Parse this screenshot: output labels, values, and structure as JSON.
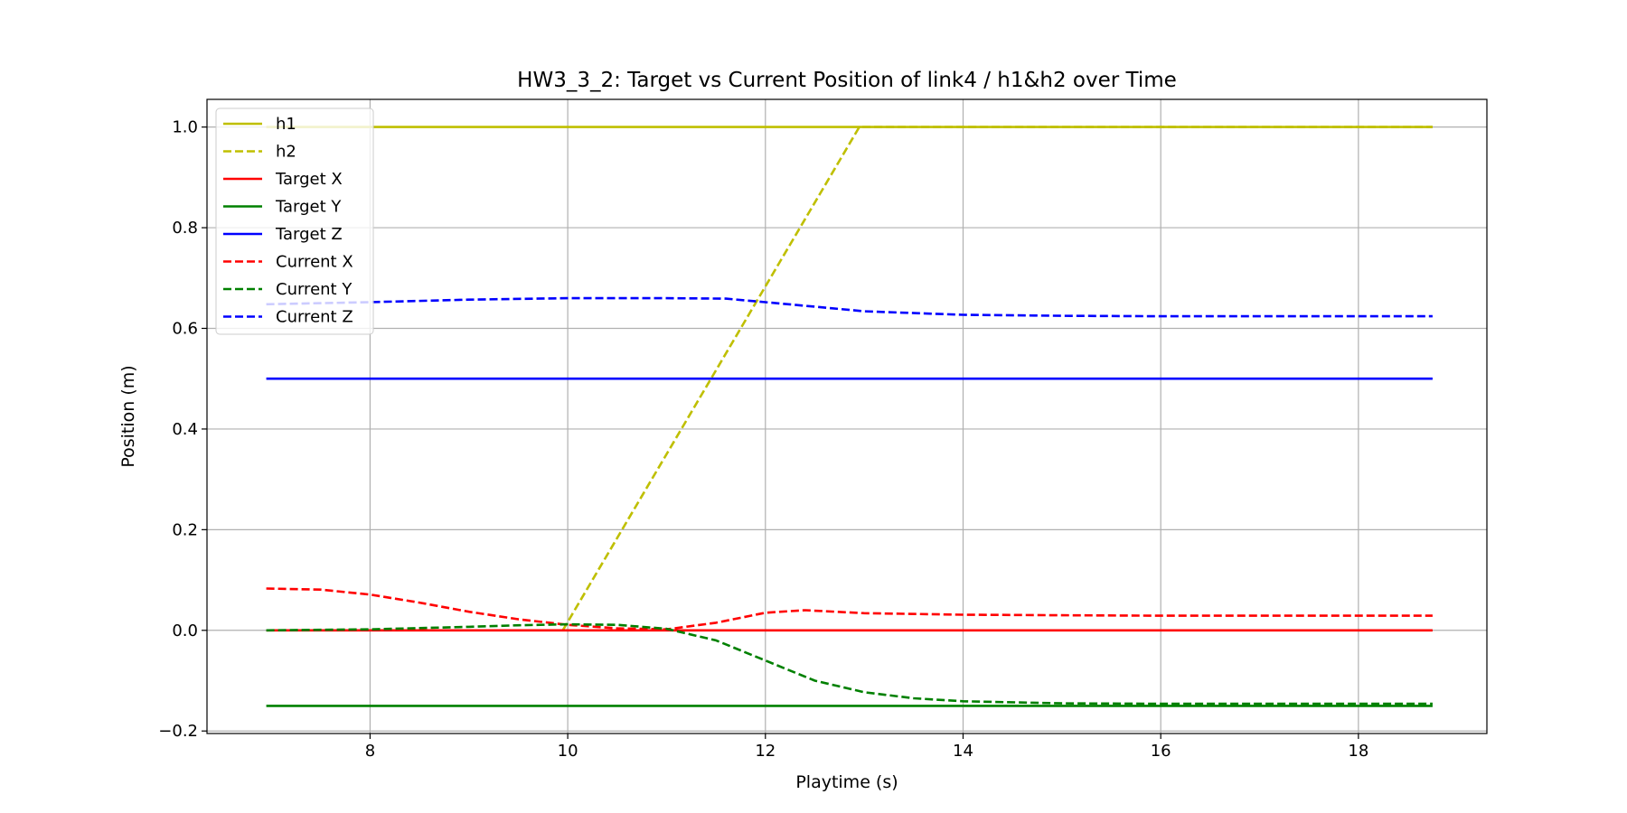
{
  "chart_data": {
    "type": "line",
    "title": "HW3_3_2: Target vs Current Position of link4 / h1&h2 over Time",
    "xlabel": "Playtime (s)",
    "ylabel": "Position (m)",
    "xlim": [
      6.35,
      19.3
    ],
    "ylim": [
      -0.205,
      1.055
    ],
    "xticks": [
      8,
      10,
      12,
      14,
      16,
      18
    ],
    "xtick_labels": [
      "8",
      "10",
      "12",
      "14",
      "16",
      "18"
    ],
    "yticks": [
      -0.2,
      0.0,
      0.2,
      0.4,
      0.6,
      0.8,
      1.0
    ],
    "ytick_labels": [
      "−0.2",
      "0.0",
      "0.2",
      "0.4",
      "0.6",
      "0.8",
      "1.0"
    ],
    "grid": true,
    "legend_position": "upper-left",
    "series": [
      {
        "name": "h1",
        "color": "#bfbf00",
        "style": "solid",
        "x": [
          6.95,
          18.75
        ],
        "y": [
          1.0,
          1.0
        ]
      },
      {
        "name": "h2",
        "color": "#bfbf00",
        "style": "dashed",
        "x": [
          9.95,
          12.95,
          18.75
        ],
        "y": [
          0.0,
          1.0,
          1.0
        ]
      },
      {
        "name": "Target X",
        "color": "#ff0000",
        "style": "solid",
        "x": [
          6.95,
          18.75
        ],
        "y": [
          0.0,
          0.0
        ]
      },
      {
        "name": "Target Y",
        "color": "#008000",
        "style": "solid",
        "x": [
          6.95,
          18.75
        ],
        "y": [
          -0.15,
          -0.15
        ]
      },
      {
        "name": "Target Z",
        "color": "#0000ff",
        "style": "solid",
        "x": [
          6.95,
          18.75
        ],
        "y": [
          0.5,
          0.5
        ]
      },
      {
        "name": "Current X",
        "color": "#ff0000",
        "style": "dashed",
        "x": [
          6.95,
          7.5,
          8.0,
          8.5,
          9.0,
          9.5,
          10.0,
          10.5,
          11.0,
          11.5,
          12.0,
          12.4,
          13.0,
          14.0,
          15.0,
          16.0,
          17.0,
          18.75
        ],
        "y": [
          0.083,
          0.081,
          0.071,
          0.055,
          0.037,
          0.022,
          0.011,
          0.004,
          0.002,
          0.015,
          0.035,
          0.04,
          0.034,
          0.031,
          0.03,
          0.029,
          0.029,
          0.029
        ]
      },
      {
        "name": "Current Y",
        "color": "#008000",
        "style": "dashed",
        "x": [
          6.95,
          8.0,
          9.0,
          9.5,
          10.0,
          10.5,
          11.0,
          11.5,
          12.0,
          12.5,
          13.0,
          13.5,
          14.0,
          15.0,
          16.0,
          17.0,
          18.75
        ],
        "y": [
          0.0,
          0.002,
          0.007,
          0.01,
          0.012,
          0.011,
          0.003,
          -0.02,
          -0.06,
          -0.1,
          -0.123,
          -0.135,
          -0.141,
          -0.145,
          -0.146,
          -0.146,
          -0.146
        ]
      },
      {
        "name": "Current Z",
        "color": "#0000ff",
        "style": "dashed",
        "x": [
          6.95,
          8.0,
          9.0,
          10.0,
          11.0,
          11.6,
          12.0,
          12.5,
          13.0,
          14.0,
          15.0,
          16.0,
          17.0,
          18.75
        ],
        "y": [
          0.648,
          0.652,
          0.657,
          0.66,
          0.66,
          0.659,
          0.652,
          0.643,
          0.634,
          0.627,
          0.625,
          0.624,
          0.624,
          0.624
        ]
      }
    ]
  }
}
